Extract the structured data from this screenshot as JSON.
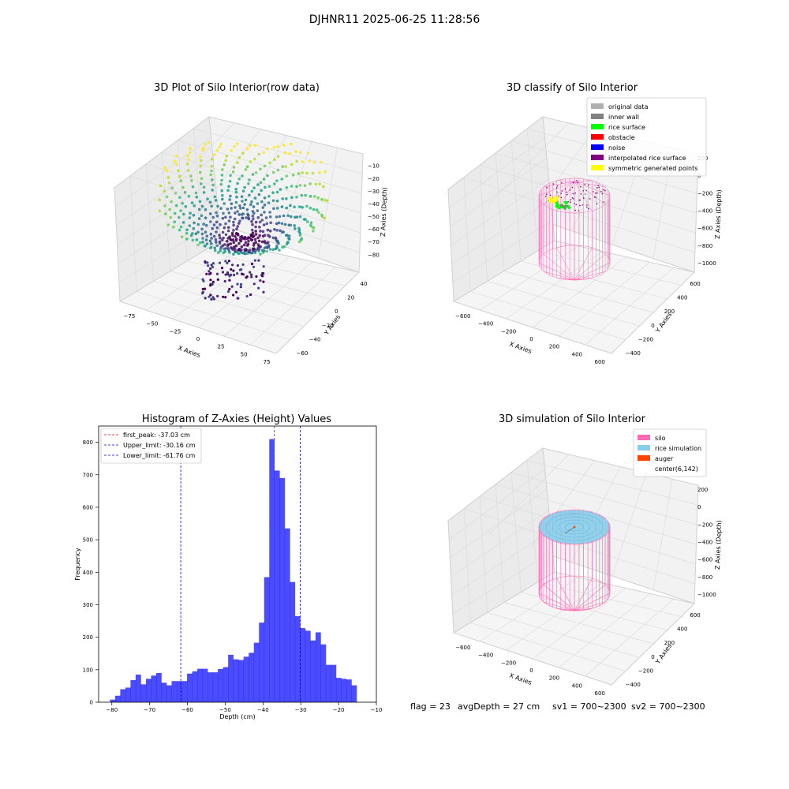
{
  "suptitle": "DJHNR11 2025-06-25 11:28:56",
  "colors": {
    "hist_bar": "#0000ff",
    "peak_line": "#ff0000",
    "limit_line": "#0000cc",
    "silo": "#ff69b4",
    "rice_simulation": "#87ceeb",
    "auger": "#ff4500",
    "original_data": "#b0b0b0",
    "inner_wall": "#808080",
    "rice_surface": "#00ff00",
    "obstacle": "#ff0000",
    "noise": "#0000ff",
    "interpolated_rice_surface": "#800080",
    "symmetric_generated_points": "#ffff00"
  },
  "chart_data": [
    {
      "type": "scatter",
      "title": "3D Plot of Silo Interior(row data)",
      "xlabel": "X Axies",
      "ylabel": "Y Axies",
      "zlabel": "Z Axies (Depth)",
      "x_ticks": [
        "−75",
        "−50",
        "−25",
        "0",
        "25",
        "50",
        "75"
      ],
      "y_ticks": [
        "−60",
        "−40",
        "−20",
        "0",
        "20",
        "40"
      ],
      "z_ticks": [
        "−80",
        "−70",
        "−60",
        "−50",
        "−40",
        "−30",
        "−20",
        "−10"
      ],
      "colormap": "viridis"
    },
    {
      "type": "scatter",
      "title": "3D classify of Silo Interior",
      "xlabel": "X Axies",
      "ylabel": "Y Axies",
      "zlabel": "Z Axies (Depth)",
      "x_ticks": [
        "−600",
        "−400",
        "−200",
        "0",
        "200",
        "400",
        "600"
      ],
      "y_ticks": [
        "−400",
        "−200",
        "0",
        "200",
        "400",
        "600"
      ],
      "z_ticks": [
        "−1000",
        "−800",
        "−600",
        "−400",
        "−200",
        "0",
        "200"
      ],
      "legend_position": "top-right",
      "legend": [
        {
          "label": "original data",
          "color": "#b0b0b0"
        },
        {
          "label": "inner wall",
          "color": "#808080"
        },
        {
          "label": "rice surface",
          "color": "#00ff00"
        },
        {
          "label": "obstacle",
          "color": "#ff0000"
        },
        {
          "label": "noise",
          "color": "#0000ff"
        },
        {
          "label": "interpolated rice surface",
          "color": "#800080"
        },
        {
          "label": "symmetric generated points",
          "color": "#ffff00"
        }
      ]
    },
    {
      "type": "bar",
      "title": "Histogram of Z-Axies (Height) Values",
      "xlabel": "Depth (cm)",
      "ylabel": "Frequency",
      "xlim": [
        -83.5,
        -10
      ],
      "ylim": [
        0,
        850
      ],
      "x_ticks": [
        -80,
        -70,
        -60,
        -50,
        -40,
        -30,
        -20,
        -10
      ],
      "y_ticks": [
        0,
        100,
        200,
        300,
        400,
        500,
        600,
        700,
        800
      ],
      "bin_start": -80.5,
      "bin_width": 1.36,
      "values": [
        8,
        20,
        40,
        45,
        68,
        85,
        55,
        72,
        82,
        90,
        60,
        52,
        65,
        65,
        65,
        88,
        95,
        103,
        103,
        92,
        92,
        102,
        108,
        146,
        132,
        130,
        140,
        152,
        183,
        245,
        385,
        810,
        713,
        690,
        535,
        370,
        265,
        228,
        220,
        190,
        215,
        178,
        115,
        115,
        75,
        72,
        70,
        52
      ],
      "legend_position": "top-left",
      "lines": [
        {
          "label": "first_peak: -37.03 cm",
          "x": -37.03,
          "color": "#ff0000"
        },
        {
          "label": "Upper_limit: -30.16 cm",
          "x": -30.16,
          "color": "#0000cc"
        },
        {
          "label": "Lower_limit: -61.76 cm",
          "x": -61.76,
          "color": "#0000cc"
        }
      ]
    },
    {
      "type": "scatter",
      "title": "3D simulation of Silo Interior",
      "xlabel": "X Axies",
      "ylabel": "Y Axies",
      "zlabel": "Z Axies (Depth)",
      "x_ticks": [
        "−600",
        "−400",
        "−200",
        "0",
        "200",
        "400",
        "600"
      ],
      "y_ticks": [
        "−400",
        "−200",
        "0",
        "200",
        "400",
        "600"
      ],
      "z_ticks": [
        "−1000",
        "−800",
        "−600",
        "−400",
        "−200",
        "0",
        "200"
      ],
      "legend_position": "top-right",
      "legend": [
        {
          "label": "silo",
          "color": "#ff69b4"
        },
        {
          "label": "rice simulation",
          "color": "#87ceeb"
        },
        {
          "label": "auger",
          "color": "#ff4500"
        },
        {
          "label": "center(6,142)",
          "color": ""
        }
      ]
    }
  ],
  "footer": {
    "flag": "flag = 23",
    "avg_depth": "avgDepth = 27 cm",
    "sv1": "sv1 = 700~2300",
    "sv2": "sv2 = 700~2300"
  }
}
